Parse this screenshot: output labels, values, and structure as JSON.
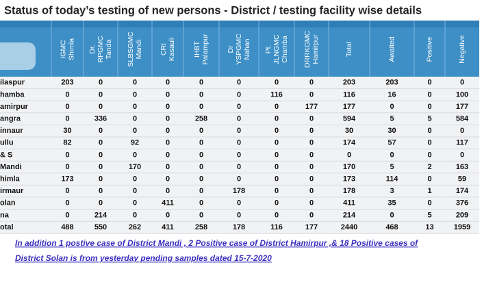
{
  "header": {
    "title": "Status of today’s testing of new persons - District / testing facility wise details"
  },
  "table": {
    "columns": [
      [
        "IGMC",
        "Shimla"
      ],
      [
        "Dr.",
        "RPGMC",
        "Tanda"
      ],
      [
        "SLBSGMC",
        "Mandi"
      ],
      [
        "CRI",
        "Kasauli"
      ],
      [
        "IHBT",
        "Palampur"
      ],
      [
        "Dr",
        "YSPGMC",
        "Nahan"
      ],
      [
        "Pt.",
        "JLNGMC",
        "Chamba"
      ],
      [
        "DRRKGMC",
        "Hamirpur"
      ],
      [
        "Total"
      ],
      [
        "Awaited"
      ],
      [
        "Positive"
      ],
      [
        "Negative"
      ]
    ],
    "rows": [
      [
        "ilaspur",
        203,
        0,
        0,
        0,
        0,
        0,
        0,
        0,
        203,
        203,
        0,
        0
      ],
      [
        "hamba",
        0,
        0,
        0,
        0,
        0,
        0,
        116,
        0,
        116,
        16,
        0,
        100
      ],
      [
        "amirpur",
        0,
        0,
        0,
        0,
        0,
        0,
        0,
        177,
        177,
        0,
        0,
        177
      ],
      [
        "angra",
        0,
        336,
        0,
        0,
        258,
        0,
        0,
        0,
        594,
        5,
        5,
        584
      ],
      [
        "innaur",
        30,
        0,
        0,
        0,
        0,
        0,
        0,
        0,
        30,
        30,
        0,
        0
      ],
      [
        "ullu",
        82,
        0,
        92,
        0,
        0,
        0,
        0,
        0,
        174,
        57,
        0,
        117
      ],
      [
        "& S",
        0,
        0,
        0,
        0,
        0,
        0,
        0,
        0,
        0,
        0,
        0,
        0
      ],
      [
        "Mandi",
        0,
        0,
        170,
        0,
        0,
        0,
        0,
        0,
        170,
        5,
        2,
        163
      ],
      [
        "himla",
        173,
        0,
        0,
        0,
        0,
        0,
        0,
        0,
        173,
        114,
        0,
        59
      ],
      [
        "irmaur",
        0,
        0,
        0,
        0,
        0,
        178,
        0,
        0,
        178,
        3,
        1,
        174
      ],
      [
        "olan",
        0,
        0,
        0,
        411,
        0,
        0,
        0,
        0,
        411,
        35,
        0,
        376
      ],
      [
        "na",
        0,
        214,
        0,
        0,
        0,
        0,
        0,
        0,
        214,
        0,
        5,
        209
      ],
      [
        "otal",
        488,
        550,
        262,
        411,
        258,
        178,
        116,
        177,
        2440,
        468,
        13,
        1959
      ]
    ]
  },
  "footnote": [
    "In addition 1 postive case of District Mandi , 2 Positive case of District Hamirpur ,& 18 Positive cases of",
    "District Solan  is from yesterday pending samples dated 15-7-2020"
  ]
}
